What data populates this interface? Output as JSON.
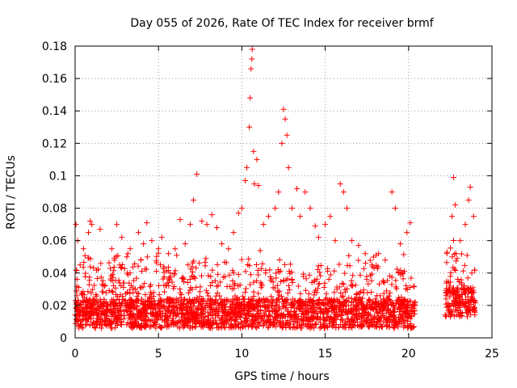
{
  "chart_data": {
    "type": "scatter",
    "title": "Day 055 of 2026, Rate Of TEC Index for receiver brmf",
    "xlabel": "GPS time / hours",
    "ylabel": "ROTI / TECUs",
    "xlim": [
      0,
      25
    ],
    "ylim": [
      0,
      0.18
    ],
    "xticks": [
      "0",
      "5",
      "10",
      "15",
      "20",
      "25"
    ],
    "yticks": [
      "0",
      "0.02",
      "0.04",
      "0.06",
      "0.08",
      "0.1",
      "0.12",
      "0.14",
      "0.16",
      "0.18"
    ],
    "grid": true,
    "marker": "+",
    "color": "#ff0000",
    "series": [
      {
        "points": [
          [
            0.05,
            0.07
          ],
          [
            0.15,
            0.06
          ],
          [
            0.3,
            0.045
          ],
          [
            0.5,
            0.055
          ],
          [
            0.8,
            0.065
          ],
          [
            0.9,
            0.072
          ],
          [
            1.0,
            0.07
          ],
          [
            1.5,
            0.067
          ],
          [
            2.2,
            0.055
          ],
          [
            2.5,
            0.07
          ],
          [
            2.8,
            0.062
          ],
          [
            3.1,
            0.05
          ],
          [
            3.3,
            0.055
          ],
          [
            3.8,
            0.065
          ],
          [
            4.1,
            0.058
          ],
          [
            4.3,
            0.071
          ],
          [
            4.6,
            0.06
          ],
          [
            5.0,
            0.055
          ],
          [
            5.2,
            0.062
          ],
          [
            5.6,
            0.052
          ],
          [
            6.0,
            0.055
          ],
          [
            6.3,
            0.073
          ],
          [
            6.6,
            0.058
          ],
          [
            6.9,
            0.07
          ],
          [
            7.1,
            0.085
          ],
          [
            7.3,
            0.101
          ],
          [
            7.6,
            0.072
          ],
          [
            7.9,
            0.07
          ],
          [
            8.2,
            0.076
          ],
          [
            8.5,
            0.068
          ],
          [
            8.8,
            0.058
          ],
          [
            9.2,
            0.055
          ],
          [
            9.5,
            0.065
          ],
          [
            9.8,
            0.077
          ],
          [
            10.0,
            0.08
          ],
          [
            10.2,
            0.097
          ],
          [
            10.3,
            0.105
          ],
          [
            10.45,
            0.13
          ],
          [
            10.5,
            0.148
          ],
          [
            10.55,
            0.166
          ],
          [
            10.6,
            0.172
          ],
          [
            10.62,
            0.178
          ],
          [
            10.7,
            0.115
          ],
          [
            10.75,
            0.095
          ],
          [
            10.9,
            0.11
          ],
          [
            11.0,
            0.094
          ],
          [
            11.3,
            0.07
          ],
          [
            11.6,
            0.075
          ],
          [
            12.0,
            0.08
          ],
          [
            12.2,
            0.09
          ],
          [
            12.4,
            0.12
          ],
          [
            12.5,
            0.141
          ],
          [
            12.6,
            0.135
          ],
          [
            12.7,
            0.125
          ],
          [
            12.8,
            0.105
          ],
          [
            13.0,
            0.08
          ],
          [
            13.3,
            0.092
          ],
          [
            13.5,
            0.075
          ],
          [
            13.8,
            0.09
          ],
          [
            14.1,
            0.08
          ],
          [
            14.4,
            0.069
          ],
          [
            14.6,
            0.062
          ],
          [
            15.0,
            0.07
          ],
          [
            15.3,
            0.075
          ],
          [
            15.6,
            0.06
          ],
          [
            15.9,
            0.095
          ],
          [
            16.1,
            0.09
          ],
          [
            16.3,
            0.08
          ],
          [
            16.6,
            0.06
          ],
          [
            17.0,
            0.057
          ],
          [
            17.4,
            0.052
          ],
          [
            17.8,
            0.045
          ],
          [
            18.2,
            0.052
          ],
          [
            18.6,
            0.048
          ],
          [
            19.0,
            0.09
          ],
          [
            19.2,
            0.08
          ],
          [
            19.5,
            0.058
          ],
          [
            19.9,
            0.065
          ],
          [
            20.1,
            0.071
          ],
          [
            22.6,
            0.075
          ],
          [
            22.7,
            0.099
          ],
          [
            22.8,
            0.082
          ],
          [
            23.1,
            0.06
          ],
          [
            23.4,
            0.07
          ],
          [
            23.6,
            0.085
          ],
          [
            23.7,
            0.093
          ],
          [
            23.9,
            0.075
          ]
        ]
      }
    ],
    "dense_bands": [
      {
        "from": 0.0,
        "to": 20.4,
        "baseline": 0.015
      },
      {
        "from": 22.2,
        "to": 24.0,
        "baseline": 0.022
      }
    ]
  }
}
